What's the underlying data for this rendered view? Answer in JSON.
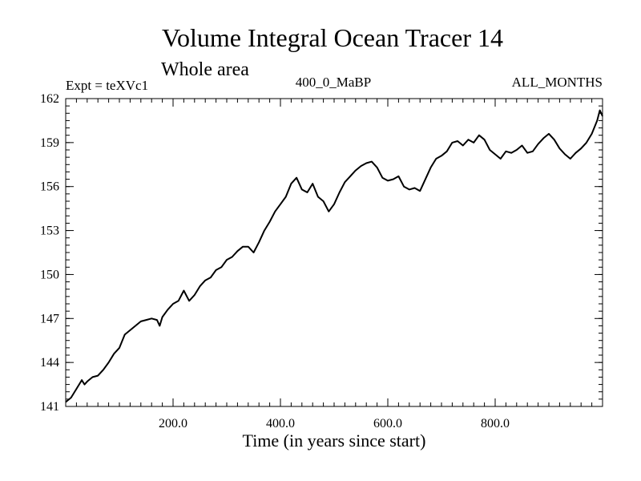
{
  "chart_data": {
    "type": "line",
    "title": "Volume Integral Ocean Tracer 14",
    "subtitle": "Whole area",
    "header_left": "Expt = teXVc1",
    "header_center": "400_0_MaBP",
    "header_right": "ALL_MONTHS",
    "xlabel": "Time (in years since start)",
    "ylabel": "",
    "xlim": [
      0,
      1000
    ],
    "ylim": [
      141,
      162
    ],
    "grid": false,
    "x_ticks": [
      200,
      400,
      600,
      800
    ],
    "x_tick_labels": [
      "200.0",
      "400.0",
      "600.0",
      "800.0"
    ],
    "y_ticks": [
      141,
      144,
      147,
      150,
      153,
      156,
      159,
      162
    ],
    "y_tick_labels": [
      "141",
      "144",
      "147",
      "150",
      "153",
      "156",
      "159",
      "162"
    ],
    "series": [
      {
        "name": "Volume Integral Ocean Tracer 14",
        "color": "#000000",
        "x": [
          0,
          10,
          20,
          30,
          35,
          40,
          50,
          60,
          70,
          80,
          90,
          100,
          110,
          120,
          130,
          140,
          150,
          160,
          170,
          175,
          180,
          190,
          200,
          210,
          220,
          230,
          240,
          250,
          260,
          270,
          280,
          290,
          300,
          310,
          320,
          330,
          340,
          350,
          360,
          370,
          380,
          390,
          400,
          410,
          420,
          430,
          440,
          450,
          460,
          470,
          480,
          490,
          500,
          510,
          520,
          530,
          540,
          550,
          560,
          570,
          580,
          590,
          600,
          610,
          620,
          630,
          640,
          650,
          660,
          670,
          680,
          690,
          700,
          710,
          720,
          730,
          740,
          750,
          760,
          770,
          780,
          790,
          800,
          810,
          820,
          830,
          840,
          850,
          860,
          870,
          880,
          890,
          900,
          910,
          920,
          930,
          940,
          950,
          960,
          970,
          980,
          990,
          995,
          1000
        ],
        "y": [
          141.3,
          141.6,
          142.2,
          142.8,
          142.5,
          142.7,
          143.0,
          143.1,
          143.5,
          144.0,
          144.6,
          145.0,
          145.9,
          146.2,
          146.5,
          146.8,
          146.9,
          147.0,
          146.9,
          146.5,
          147.1,
          147.6,
          148.0,
          148.2,
          148.9,
          148.2,
          148.6,
          149.2,
          149.6,
          149.8,
          150.3,
          150.5,
          151.0,
          151.2,
          151.6,
          151.9,
          151.9,
          151.5,
          152.2,
          153.0,
          153.6,
          154.3,
          154.8,
          155.3,
          156.2,
          156.6,
          155.8,
          155.6,
          156.2,
          155.3,
          155.0,
          154.3,
          154.8,
          155.6,
          156.3,
          156.7,
          157.1,
          157.4,
          157.6,
          157.7,
          157.3,
          156.6,
          156.4,
          156.5,
          156.7,
          156.0,
          155.8,
          155.9,
          155.7,
          156.5,
          157.3,
          157.9,
          158.1,
          158.4,
          159.0,
          159.1,
          158.8,
          159.2,
          159.0,
          159.5,
          159.2,
          158.5,
          158.2,
          157.9,
          158.4,
          158.3,
          158.5,
          158.8,
          158.3,
          158.4,
          158.9,
          159.3,
          159.6,
          159.2,
          158.6,
          158.2,
          157.9,
          158.3,
          158.6,
          159.0,
          159.6,
          160.5,
          161.2,
          160.8
        ]
      }
    ]
  }
}
